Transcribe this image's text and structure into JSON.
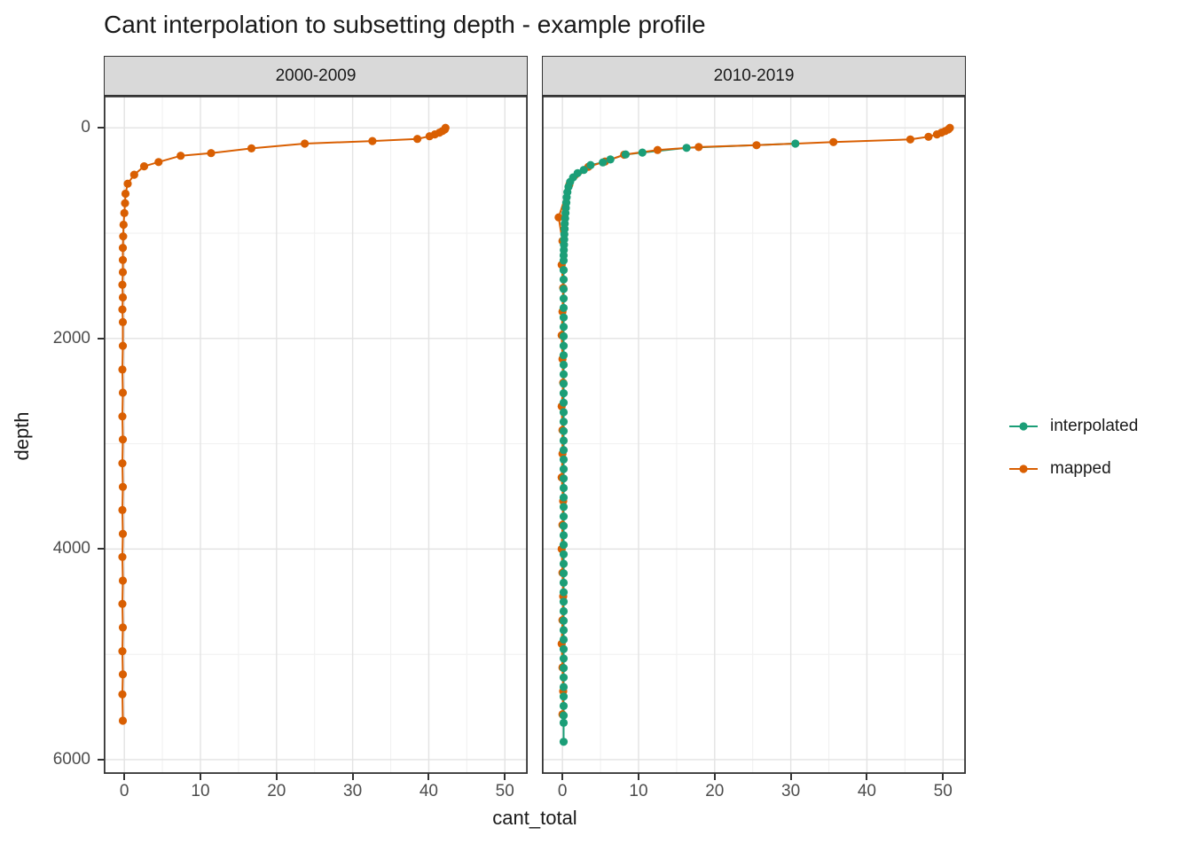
{
  "colors": {
    "interpolated": "#1B9E77",
    "mapped": "#D95F02",
    "strip_bg": "#D9D9D9",
    "panel_border": "#333333",
    "grid_major": "#E3E3E3",
    "grid_minor": "#F1F1F1",
    "tick_label": "#4D4D4D",
    "text": "#1A1A1A"
  },
  "chart_data": {
    "type": "line",
    "title": "Cant interpolation to subsetting depth - example profile",
    "xlabel": "cant_total",
    "ylabel": "depth",
    "legend": [
      "interpolated",
      "mapped"
    ],
    "legend_position": "right",
    "grid": "on",
    "x_domain": [
      -2.7,
      53.0
    ],
    "y_domain": [
      -305,
      6135
    ],
    "y_reversed": true,
    "x_ticks": [
      0,
      10,
      20,
      30,
      40,
      50
    ],
    "x_tick_labels": [
      "0",
      "10",
      "20",
      "30",
      "40",
      "50"
    ],
    "x_minor": [
      5,
      15,
      25,
      35,
      45
    ],
    "y_ticks": [
      0,
      2000,
      4000,
      6000
    ],
    "y_tick_labels": [
      "0",
      "2000",
      "4000",
      "6000"
    ],
    "y_minor": [
      1000,
      3000,
      5000
    ],
    "facets": [
      {
        "label": "2000-2009",
        "series": [
          {
            "name": "mapped",
            "points": [
              [
                42.2,
                0
              ],
              [
                42.1,
                15
              ],
              [
                41.8,
                30
              ],
              [
                41.4,
                45
              ],
              [
                40.8,
                62
              ],
              [
                40.1,
                80
              ],
              [
                38.5,
                105
              ],
              [
                32.6,
                125
              ],
              [
                23.7,
                150
              ],
              [
                16.7,
                195
              ],
              [
                11.4,
                240
              ],
              [
                7.4,
                265
              ],
              [
                4.5,
                325
              ],
              [
                2.6,
                365
              ],
              [
                1.3,
                445
              ],
              [
                0.45,
                530
              ],
              [
                0.15,
                625
              ],
              [
                0.1,
                715
              ],
              [
                0,
                810
              ],
              [
                -0.1,
                920
              ],
              [
                -0.15,
                1030
              ],
              [
                -0.2,
                1140
              ],
              [
                -0.2,
                1255
              ],
              [
                -0.2,
                1370
              ],
              [
                -0.25,
                1490
              ],
              [
                -0.2,
                1610
              ],
              [
                -0.25,
                1725
              ],
              [
                -0.2,
                1845
              ],
              [
                -0.2,
                2070
              ],
              [
                -0.25,
                2295
              ],
              [
                -0.2,
                2515
              ],
              [
                -0.25,
                2740
              ],
              [
                -0.2,
                2960
              ],
              [
                -0.25,
                3185
              ],
              [
                -0.2,
                3410
              ],
              [
                -0.25,
                3630
              ],
              [
                -0.2,
                3855
              ],
              [
                -0.25,
                4075
              ],
              [
                -0.2,
                4300
              ],
              [
                -0.25,
                4520
              ],
              [
                -0.2,
                4745
              ],
              [
                -0.25,
                4970
              ],
              [
                -0.2,
                5190
              ],
              [
                -0.25,
                5380
              ],
              [
                -0.2,
                5630
              ]
            ]
          }
        ]
      },
      {
        "label": "2010-2019",
        "series": [
          {
            "name": "interpolated",
            "points": [
              [
                30.6,
                150
              ],
              [
                16.3,
                190
              ],
              [
                10.5,
                235
              ],
              [
                8.3,
                252
              ],
              [
                6.3,
                300
              ],
              [
                5.3,
                328
              ],
              [
                3.7,
                353
              ],
              [
                2.8,
                400
              ],
              [
                2.0,
                430
              ],
              [
                1.4,
                470
              ],
              [
                1.0,
                513
              ],
              [
                0.8,
                560
              ],
              [
                0.65,
                610
              ],
              [
                0.55,
                660
              ],
              [
                0.5,
                710
              ],
              [
                0.45,
                760
              ],
              [
                0.4,
                810
              ],
              [
                0.35,
                860
              ],
              [
                0.3,
                910
              ],
              [
                0.28,
                960
              ],
              [
                0.25,
                1010
              ],
              [
                0.22,
                1060
              ],
              [
                0.2,
                1110
              ],
              [
                0.18,
                1160
              ],
              [
                0.16,
                1210
              ],
              [
                0.15,
                1260
              ],
              [
                0.15,
                1350
              ],
              [
                0.15,
                1440
              ],
              [
                0.15,
                1530
              ],
              [
                0.15,
                1620
              ],
              [
                0.15,
                1710
              ],
              [
                0.15,
                1800
              ],
              [
                0.15,
                1890
              ],
              [
                0.15,
                1980
              ],
              [
                0.15,
                2070
              ],
              [
                0.15,
                2160
              ],
              [
                0.15,
                2250
              ],
              [
                0.15,
                2340
              ],
              [
                0.15,
                2430
              ],
              [
                0.15,
                2520
              ],
              [
                0.15,
                2610
              ],
              [
                0.15,
                2700
              ],
              [
                0.15,
                2790
              ],
              [
                0.15,
                2880
              ],
              [
                0.15,
                2970
              ],
              [
                0.15,
                3060
              ],
              [
                0.15,
                3150
              ],
              [
                0.15,
                3240
              ],
              [
                0.15,
                3330
              ],
              [
                0.15,
                3420
              ],
              [
                0.15,
                3510
              ],
              [
                0.15,
                3600
              ],
              [
                0.15,
                3690
              ],
              [
                0.15,
                3780
              ],
              [
                0.15,
                3870
              ],
              [
                0.15,
                3960
              ],
              [
                0.15,
                4050
              ],
              [
                0.15,
                4140
              ],
              [
                0.15,
                4230
              ],
              [
                0.15,
                4320
              ],
              [
                0.15,
                4410
              ],
              [
                0.15,
                4500
              ],
              [
                0.15,
                4590
              ],
              [
                0.15,
                4680
              ],
              [
                0.15,
                4770
              ],
              [
                0.15,
                4860
              ],
              [
                0.15,
                4950
              ],
              [
                0.15,
                5040
              ],
              [
                0.15,
                5130
              ],
              [
                0.15,
                5220
              ],
              [
                0.15,
                5310
              ],
              [
                0.15,
                5400
              ],
              [
                0.15,
                5490
              ],
              [
                0.15,
                5580
              ],
              [
                0.15,
                5650
              ],
              [
                0.15,
                5830
              ]
            ]
          },
          {
            "name": "mapped",
            "points": [
              [
                50.9,
                0
              ],
              [
                50.7,
                15
              ],
              [
                50.3,
                30
              ],
              [
                49.8,
                45
              ],
              [
                49.2,
                62
              ],
              [
                48.1,
                85
              ],
              [
                45.7,
                110
              ],
              [
                35.6,
                135
              ],
              [
                25.5,
                165
              ],
              [
                17.9,
                182
              ],
              [
                12.5,
                210
              ],
              [
                8.1,
                255
              ],
              [
                5.6,
                320
              ],
              [
                3.4,
                370
              ],
              [
                0.9,
                540
              ],
              [
                -0.5,
                850
              ],
              [
                0,
                1075
              ],
              [
                -0.1,
                1300
              ],
              [
                0.1,
                1520
              ],
              [
                0,
                1745
              ],
              [
                -0.1,
                1970
              ],
              [
                0,
                2195
              ],
              [
                0.1,
                2420
              ],
              [
                -0.1,
                2645
              ],
              [
                0,
                2870
              ],
              [
                0,
                3095
              ],
              [
                -0.1,
                3320
              ],
              [
                0.1,
                3545
              ],
              [
                0,
                3770
              ],
              [
                -0.1,
                4000
              ],
              [
                0,
                4225
              ],
              [
                0.1,
                4450
              ],
              [
                0,
                4675
              ],
              [
                -0.1,
                4900
              ],
              [
                0,
                5125
              ],
              [
                0.1,
                5350
              ],
              [
                0,
                5570
              ]
            ]
          }
        ]
      }
    ]
  }
}
